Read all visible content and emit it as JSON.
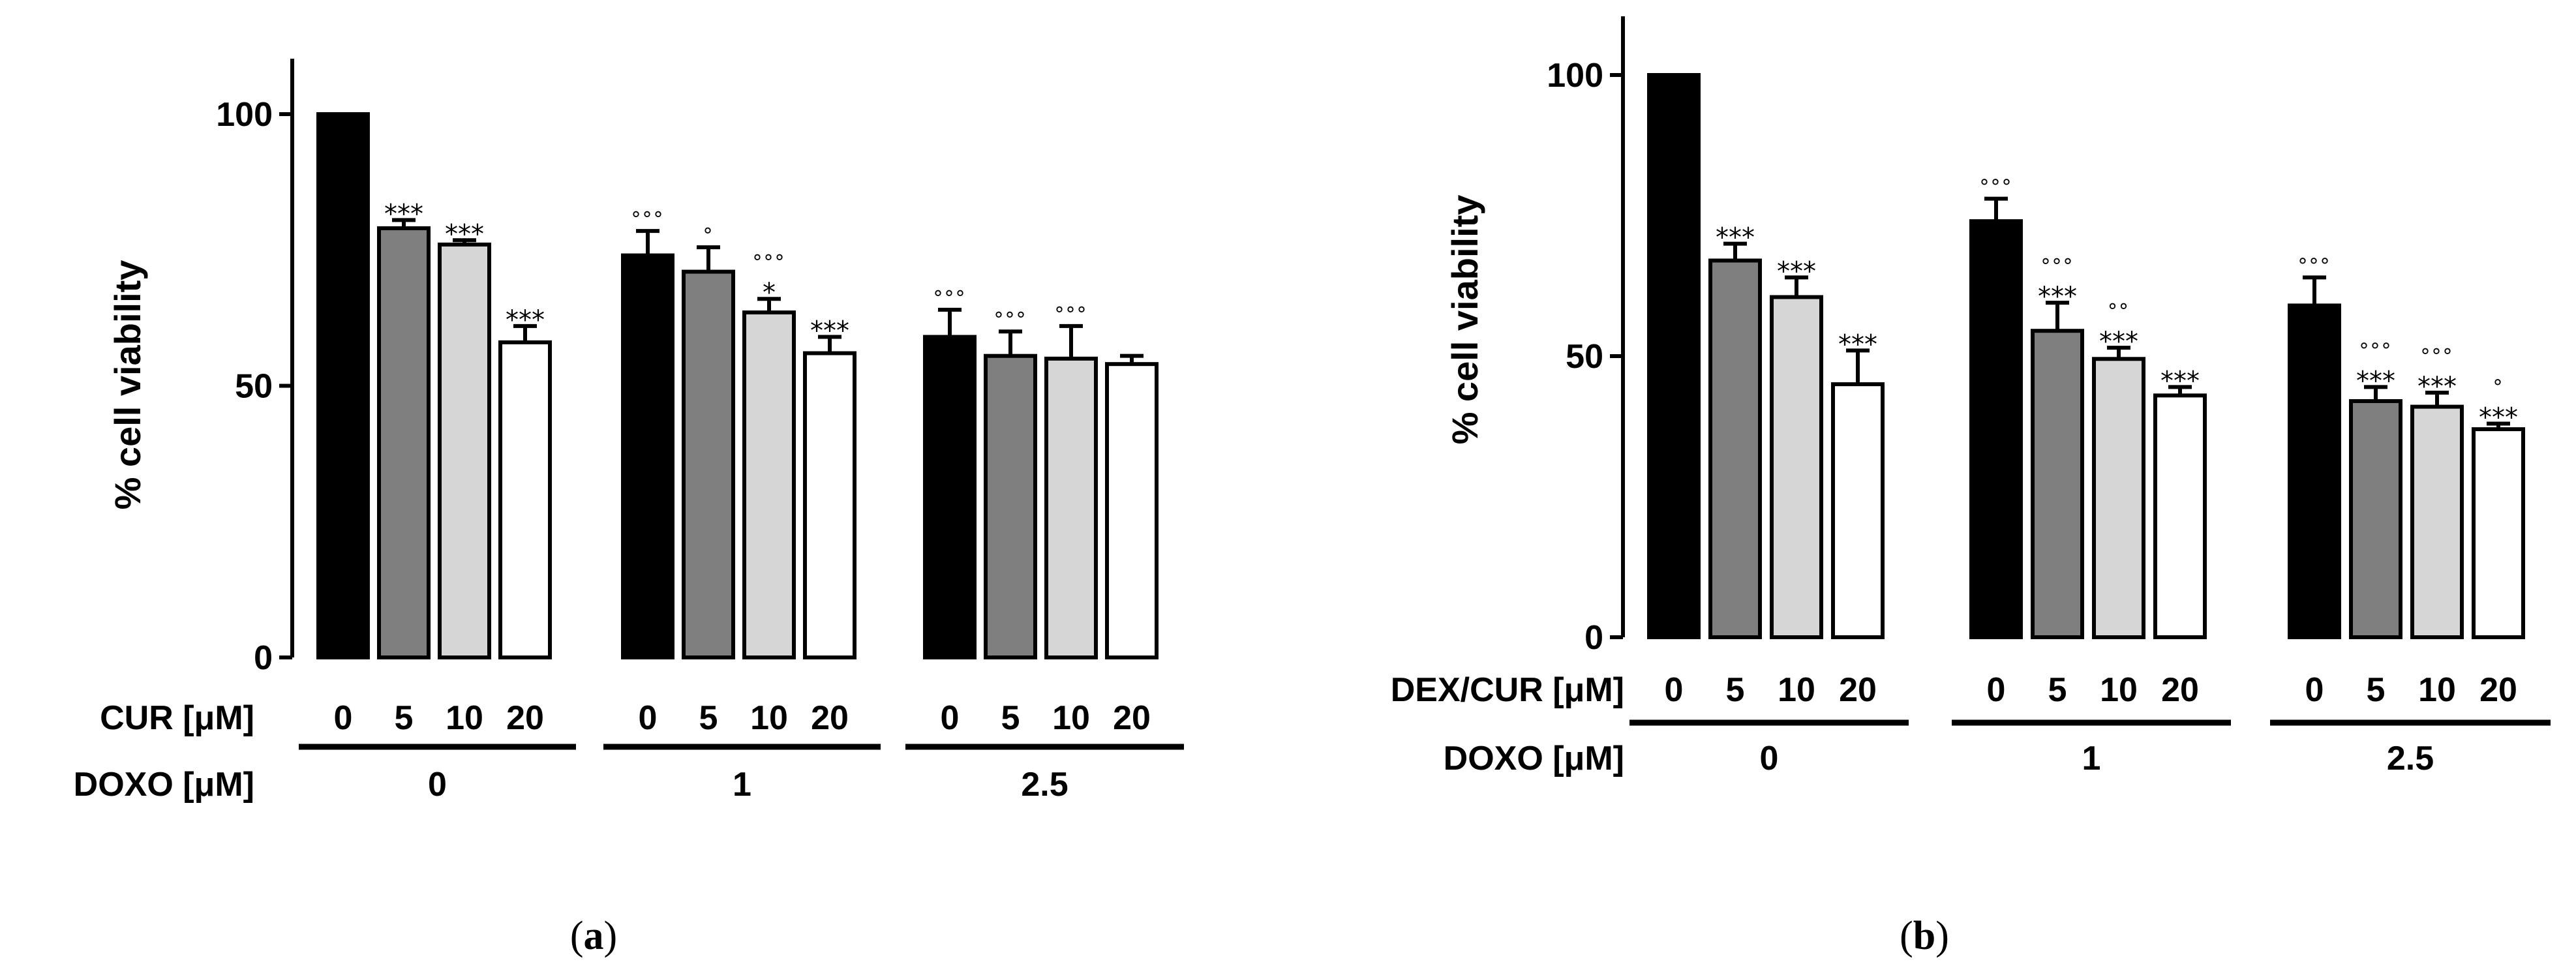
{
  "colors": {
    "0": "#000000",
    "5": "#7f7f7f",
    "10": "#d6d6d6",
    "20": "#ffffff"
  },
  "panels": [
    {
      "caption_letter": "a",
      "ylabel": "% cell viability",
      "row1_label": "CUR [μM]",
      "row2_label": "DOXO [μM]"
    },
    {
      "caption_letter": "b",
      "ylabel": "% cell viability",
      "row1_label": "DEX/CUR [μM]",
      "row2_label": "DOXO [μM]"
    }
  ],
  "chart_data": [
    {
      "type": "bar",
      "title": "",
      "ylabel": "% cell viability",
      "ylim": [
        0,
        110
      ],
      "yticks": [
        0,
        50,
        100
      ],
      "row1_label": "CUR [μM]",
      "row2_label": "DOXO [μM]",
      "groups": [
        {
          "label": "0",
          "bars": [
            {
              "category": "0",
              "value": 100,
              "err": 0,
              "sig": "",
              "circ": ""
            },
            {
              "category": "5",
              "value": 79,
              "err": 1.5,
              "sig": "***",
              "circ": ""
            },
            {
              "category": "10",
              "value": 76,
              "err": 0.8,
              "sig": "***",
              "circ": ""
            },
            {
              "category": "20",
              "value": 58,
              "err": 3,
              "sig": "***",
              "circ": ""
            }
          ]
        },
        {
          "label": "1",
          "bars": [
            {
              "category": "0",
              "value": 74,
              "err": 4.5,
              "sig": "",
              "circ": "°°°"
            },
            {
              "category": "5",
              "value": 71,
              "err": 4.5,
              "sig": "",
              "circ": "°"
            },
            {
              "category": "10",
              "value": 63.5,
              "err": 2.5,
              "sig": "*",
              "circ": "°°°"
            },
            {
              "category": "20",
              "value": 56,
              "err": 3,
              "sig": "***",
              "circ": ""
            }
          ]
        },
        {
          "label": "2.5",
          "bars": [
            {
              "category": "0",
              "value": 59,
              "err": 5,
              "sig": "",
              "circ": "°°°"
            },
            {
              "category": "5",
              "value": 55.5,
              "err": 4.5,
              "sig": "",
              "circ": "°°°"
            },
            {
              "category": "10",
              "value": 55,
              "err": 6,
              "sig": "",
              "circ": "°°°"
            },
            {
              "category": "20",
              "value": 54,
              "err": 1.5,
              "sig": "",
              "circ": ""
            }
          ]
        }
      ]
    },
    {
      "type": "bar",
      "title": "",
      "ylabel": "% cell viability",
      "ylim": [
        0,
        111
      ],
      "yticks": [
        0,
        50,
        100
      ],
      "row1_label": "DEX/CUR [μM]",
      "row2_label": "DOXO [μM]",
      "groups": [
        {
          "label": "0",
          "bars": [
            {
              "category": "0",
              "value": 100,
              "err": 0,
              "sig": "",
              "circ": ""
            },
            {
              "category": "5",
              "value": 67,
              "err": 3,
              "sig": "***",
              "circ": ""
            },
            {
              "category": "10",
              "value": 60.5,
              "err": 3.5,
              "sig": "***",
              "circ": ""
            },
            {
              "category": "20",
              "value": 45,
              "err": 6,
              "sig": "***",
              "circ": ""
            }
          ]
        },
        {
          "label": "1",
          "bars": [
            {
              "category": "0",
              "value": 74,
              "err": 4,
              "sig": "",
              "circ": "°°°"
            },
            {
              "category": "5",
              "value": 54.5,
              "err": 5,
              "sig": "***",
              "circ": "°°°"
            },
            {
              "category": "10",
              "value": 49.5,
              "err": 2,
              "sig": "***",
              "circ": "°°"
            },
            {
              "category": "20",
              "value": 43,
              "err": 1.5,
              "sig": "***",
              "circ": ""
            }
          ]
        },
        {
          "label": "2.5",
          "bars": [
            {
              "category": "0",
              "value": 59,
              "err": 5,
              "sig": "",
              "circ": "°°°"
            },
            {
              "category": "5",
              "value": 42,
              "err": 2.5,
              "sig": "***",
              "circ": "°°°"
            },
            {
              "category": "10",
              "value": 41,
              "err": 2.5,
              "sig": "***",
              "circ": "°°°"
            },
            {
              "category": "20",
              "value": 37,
              "err": 1,
              "sig": "***",
              "circ": "°"
            }
          ]
        }
      ]
    }
  ]
}
